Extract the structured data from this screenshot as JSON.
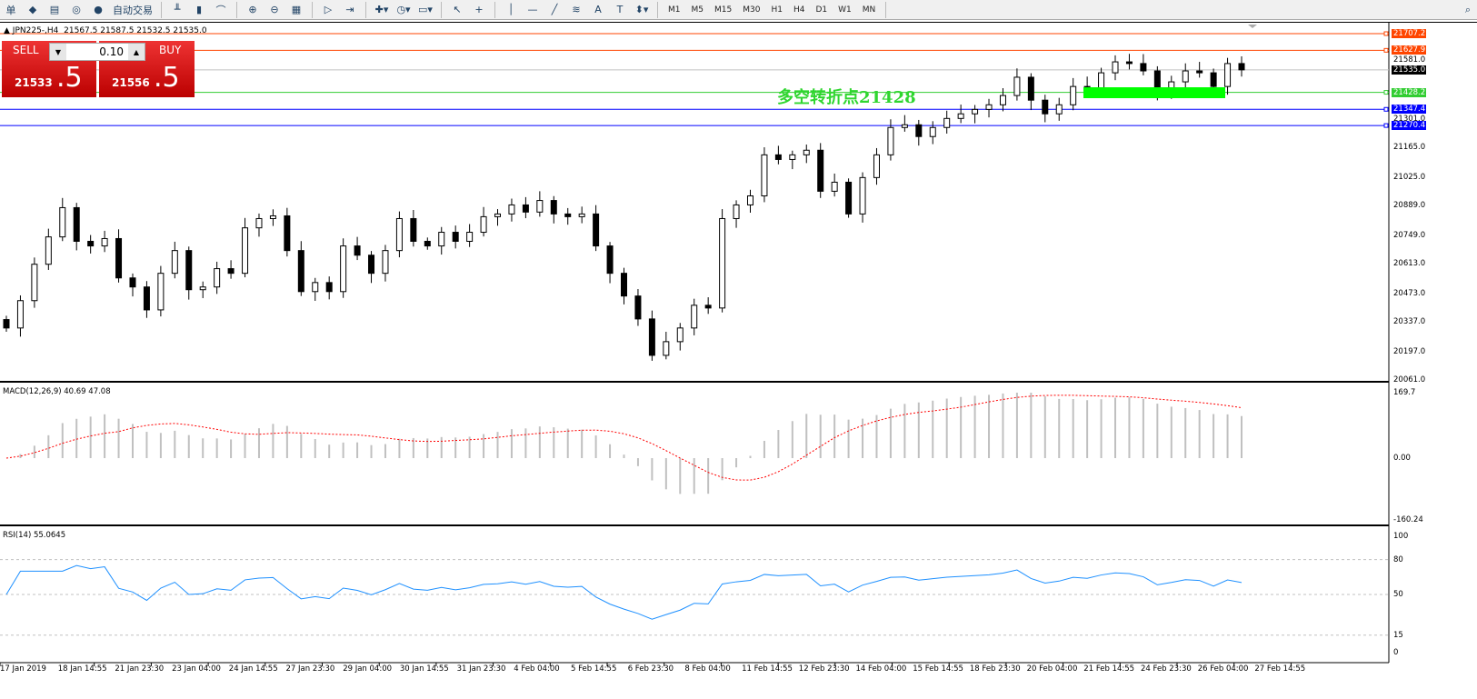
{
  "toolbar": {
    "left_char": "单",
    "auto_trade": "自动交易",
    "timeframes": [
      "M1",
      "M5",
      "M15",
      "M30",
      "H1",
      "H4",
      "D1",
      "W1",
      "MN"
    ],
    "icons": [
      "folder-icon",
      "terminal-icon",
      "signal-icon",
      "autotrade-icon",
      "bar-chart-icon",
      "candle-chart-icon",
      "line-chart-icon",
      "zoom-in-icon",
      "zoom-out-icon",
      "tile-icon",
      "autoscroll-icon",
      "chart-shift-icon",
      "new-indicator-icon",
      "period-icon",
      "template-icon",
      "cursor-icon",
      "crosshair-icon",
      "vline-icon",
      "hline-icon",
      "trendline-icon",
      "fibo-icon",
      "text-icon",
      "label-icon",
      "arrows-icon",
      "search-icon"
    ]
  },
  "header": {
    "symbol": "JPN225-,H4",
    "ohlc": "21567.5 21587.5 21532.5 21535.0"
  },
  "trade_panel": {
    "sell_label": "SELL",
    "buy_label": "BUY",
    "lot": "0.10",
    "sell_big": "21533",
    "sell_small": ".5",
    "buy_big": "21556",
    "buy_small": ".5"
  },
  "annotation": "多空转折点21428",
  "colors": {
    "resistance": "#ff4500",
    "support": "#32cd32",
    "blue": "#0000ff",
    "bull_box": "#00ff00",
    "macd_signal": "#ff0000",
    "rsi": "#1e90ff"
  },
  "price_axis": [
    "21581.0",
    "21301.0",
    "21165.0",
    "21025.0",
    "20889.0",
    "20749.0",
    "20613.0",
    "20473.0",
    "20337.0",
    "20197.0",
    "20061.0"
  ],
  "price_tags": [
    {
      "v": "21707.2",
      "c": "#ff4500"
    },
    {
      "v": "21627.9",
      "c": "#ff4500"
    },
    {
      "v": "21535.0",
      "c": "#000000"
    },
    {
      "v": "21428.2",
      "c": "#32cd32"
    },
    {
      "v": "21347.4",
      "c": "#0000ff"
    },
    {
      "v": "21270.4",
      "c": "#0000ff"
    }
  ],
  "macd": {
    "label": "MACD(12,26,9) 40.69 47.08",
    "axis": [
      "169.7",
      "0.00",
      "-160.24"
    ]
  },
  "rsi": {
    "label": "RSI(14) 55.0645",
    "axis": [
      "100",
      "80",
      "50",
      "15",
      "0"
    ]
  },
  "time_axis": [
    "17 Jan 2019",
    "18 Jan 14:55",
    "21 Jan 23:30",
    "23 Jan 04:00",
    "24 Jan 14:55",
    "27 Jan 23:30",
    "29 Jan 04:00",
    "30 Jan 14:55",
    "31 Jan 23:30",
    "4 Feb 04:00",
    "5 Feb 14:55",
    "6 Feb 23:30",
    "8 Feb 04:00",
    "11 Feb 14:55",
    "12 Feb 23:30",
    "14 Feb 04:00",
    "15 Feb 14:55",
    "18 Feb 23:30",
    "20 Feb 04:00",
    "21 Feb 14:55",
    "24 Feb 23:30",
    "26 Feb 04:00",
    "27 Feb 14:55"
  ],
  "chart_data": {
    "type": "candlestick",
    "price_range": [
      20061,
      21707.2
    ],
    "closes": [
      20308,
      20438,
      20611,
      20741,
      20880,
      20720,
      20698,
      20733,
      20546,
      20503,
      20394,
      20568,
      20676,
      20490,
      20503,
      20590,
      20568,
      20784,
      20828,
      20841,
      20676,
      20481,
      20524,
      20481,
      20698,
      20654,
      20568,
      20676,
      20828,
      20720,
      20698,
      20763,
      20720,
      20763,
      20837,
      20850,
      20893,
      20859,
      20914,
      20850,
      20837,
      20850,
      20698,
      20568,
      20460,
      20351,
      20178,
      20243,
      20308,
      20416,
      20403,
      20828,
      20893,
      20936,
      21131,
      21109,
      21131,
      21153,
      20958,
      21001,
      20850,
      21023,
      21131,
      21261,
      21274,
      21218,
      21261,
      21304,
      21326,
      21347,
      21369,
      21413,
      21500,
      21391,
      21326,
      21369,
      21456,
      21443,
      21521,
      21573,
      21565,
      21530,
      21434,
      21478,
      21530,
      21521,
      21456,
      21565,
      21535
    ],
    "levels": [
      21707.2,
      21627.9,
      21535.0,
      21428.2,
      21347.4,
      21270.4
    ],
    "macd_range": [
      -160.24,
      169.7
    ],
    "rsi_levels": [
      80,
      50,
      15
    ]
  }
}
